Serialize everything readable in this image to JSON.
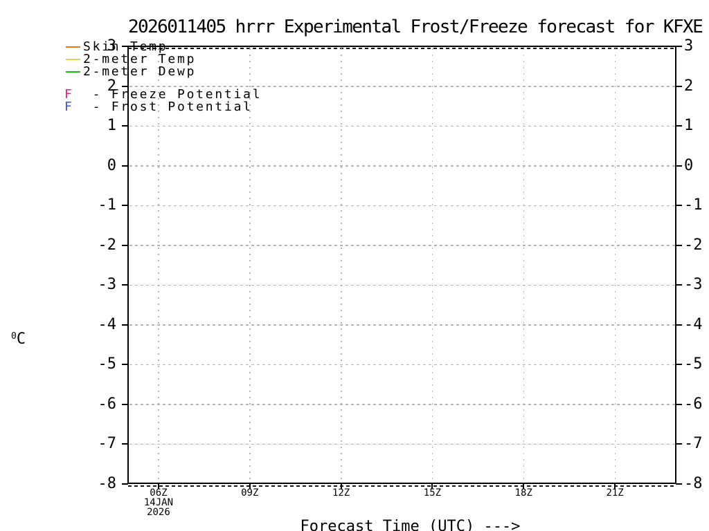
{
  "chart_data": {
    "type": "line",
    "title": "2026011405 hrrr Experimental Frost/Freeze forecast for KFXE",
    "xlabel": "Forecast Time (UTC) --->",
    "ylabel": {
      "sup": "0",
      "unit": "C"
    },
    "grid": true,
    "legend_position": "top-left",
    "frame_color": "#000000",
    "grid_color": "#b3b3b3",
    "y_axis": {
      "min": -8,
      "max": 3,
      "step": 1,
      "ticks": [
        {
          "value": 3,
          "label": "3"
        },
        {
          "value": 2,
          "label": "2"
        },
        {
          "value": 1,
          "label": "1"
        },
        {
          "value": 0,
          "label": "0"
        },
        {
          "value": -1,
          "label": "-1"
        },
        {
          "value": -2,
          "label": "-2"
        },
        {
          "value": -3,
          "label": "-3"
        },
        {
          "value": -4,
          "label": "-4"
        },
        {
          "value": -5,
          "label": "-5"
        },
        {
          "value": -6,
          "label": "-6"
        },
        {
          "value": -7,
          "label": "-7"
        },
        {
          "value": -8,
          "label": "-8"
        }
      ]
    },
    "x_axis": {
      "start_hour_utc": 5,
      "end_hour_utc": 23,
      "tick_interval_hours": 3,
      "ticks": [
        {
          "hour": 6,
          "label": "06Z",
          "date_lines": [
            "14JAN",
            "2026"
          ]
        },
        {
          "hour": 9,
          "label": "09Z"
        },
        {
          "hour": 12,
          "label": "12Z"
        },
        {
          "hour": 15,
          "label": "15Z"
        },
        {
          "hour": 18,
          "label": "18Z"
        },
        {
          "hour": 21,
          "label": "21Z"
        }
      ]
    },
    "marker_separator": "-",
    "series": [
      {
        "name": "Skin Temp",
        "swatch": "line",
        "color": "#e87818",
        "values": []
      },
      {
        "name": "2-meter Temp",
        "swatch": "line",
        "color": "#ddd83c",
        "values": []
      },
      {
        "name": "2-meter Dewp",
        "swatch": "line",
        "color": "#10c414",
        "values": []
      },
      {
        "name": "Freeze Potential",
        "swatch": "marker",
        "marker": "F",
        "color": "#f0148c",
        "values": []
      },
      {
        "name": "Frost Potential",
        "swatch": "marker",
        "marker": "F",
        "color": "#3c50f0",
        "values": []
      }
    ]
  }
}
